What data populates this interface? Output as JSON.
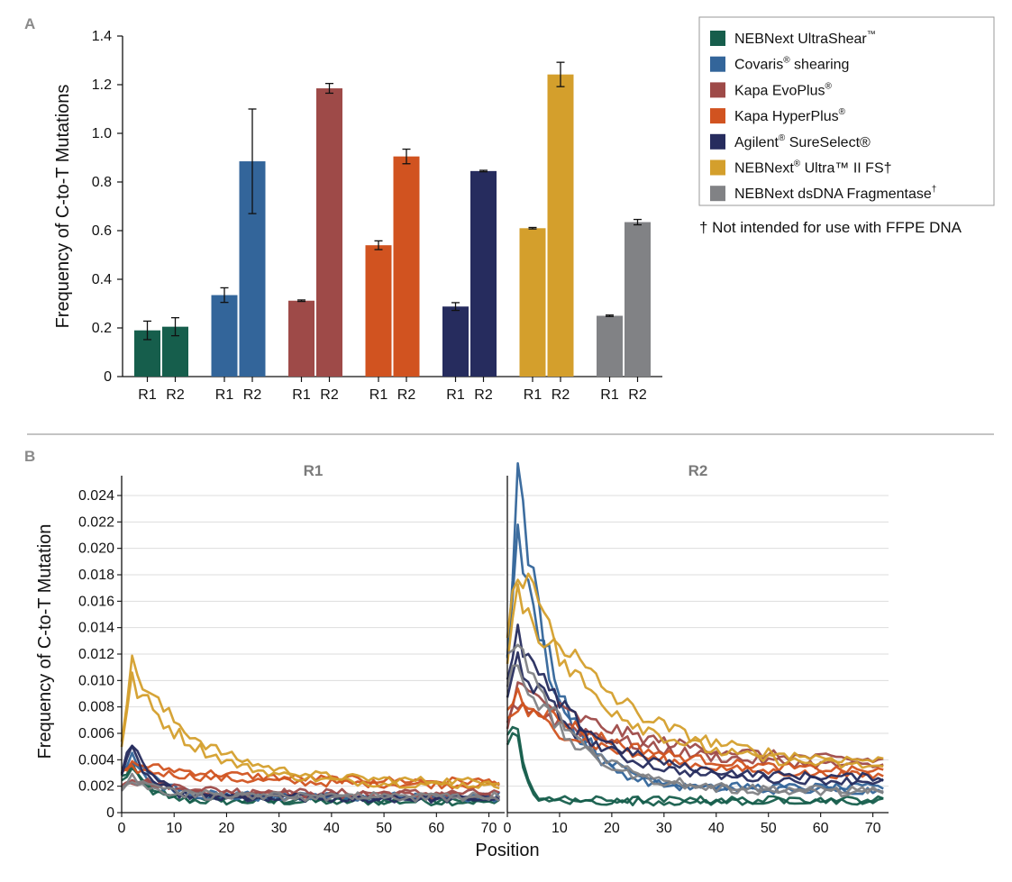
{
  "panel_labels": {
    "a": "A",
    "b": "B"
  },
  "colors": {
    "ultrashear": "#165e4c",
    "covaris": "#33659a",
    "evoplus": "#9e4a48",
    "hyperplus": "#d15320",
    "sureselect": "#262c5e",
    "ultra2fs": "#d49f2c",
    "fragmentase": "#818285"
  },
  "legend": {
    "entries": [
      {
        "text": "NEBNext UltraShear",
        "sup": "™",
        "tail": ""
      },
      {
        "text": "Covaris",
        "sup": "®",
        "tail": " shearing"
      },
      {
        "text": "Kapa EvoPlus",
        "sup": "®",
        "tail": ""
      },
      {
        "text": "Kapa HyperPlus",
        "sup": "®",
        "tail": ""
      },
      {
        "text": "Agilent",
        "sup": "®",
        "tail": " SureSelect®"
      },
      {
        "text": "NEBNext",
        "sup": "®",
        "tail": " Ultra™ II FS†"
      },
      {
        "text": "NEBNext dsDNA Fragmentase",
        "sup": "†",
        "tail": ""
      }
    ],
    "footnote": "† Not intended for use with FFPE DNA"
  },
  "chart_data": [
    {
      "type": "bar",
      "panel": "A",
      "title": "",
      "xlabel": "",
      "ylabel": "Frequency of C-to-T Mutations",
      "ylim": [
        0,
        1.4
      ],
      "yticks": [
        "0",
        "0.2",
        "0.4",
        "0.6",
        "0.8",
        "1.0",
        "1.2",
        "1.4"
      ],
      "categories": [
        "R1",
        "R2"
      ],
      "series": [
        {
          "name": "NEBNext UltraShear™",
          "values": [
            0.19,
            0.205
          ],
          "errors": [
            0.038,
            0.037
          ]
        },
        {
          "name": "Covaris® shearing",
          "values": [
            0.335,
            0.885
          ],
          "errors": [
            0.03,
            0.215
          ]
        },
        {
          "name": "Kapa EvoPlus®",
          "values": [
            0.312,
            1.185
          ],
          "errors": [
            0.003,
            0.02
          ]
        },
        {
          "name": "Kapa HyperPlus®",
          "values": [
            0.54,
            0.905
          ],
          "errors": [
            0.018,
            0.03
          ]
        },
        {
          "name": "Agilent® SureSelect®",
          "values": [
            0.288,
            0.845
          ],
          "errors": [
            0.016,
            0.003
          ]
        },
        {
          "name": "NEBNext® Ultra™ II FS†",
          "values": [
            0.61,
            1.242
          ],
          "errors": [
            0.003,
            0.05
          ]
        },
        {
          "name": "NEBNext dsDNA Fragmentase†",
          "values": [
            0.25,
            0.635
          ],
          "errors": [
            0.003,
            0.011
          ]
        }
      ]
    },
    {
      "type": "line",
      "panel": "B",
      "xlabel": "Position",
      "ylabel": "Frequency of C-to-T Mutation",
      "facets": [
        "R1",
        "R2"
      ],
      "xlim": [
        0,
        73
      ],
      "ylim": [
        0,
        0.0255
      ],
      "xticks": [
        "0",
        "10",
        "20",
        "30",
        "40",
        "50",
        "60",
        "70"
      ],
      "yticks": [
        "0",
        "0.002",
        "0.004",
        "0.006",
        "0.008",
        "0.010",
        "0.012",
        "0.014",
        "0.016",
        "0.018",
        "0.020",
        "0.022",
        "0.024"
      ],
      "series": [
        {
          "name": "NEBNext UltraShear™",
          "replicates": 2,
          "R1": {
            "start": 0.0025,
            "peak": 0.0035,
            "tail": 0.0009,
            "k": 0.3
          },
          "R2": {
            "start": 0.006,
            "peak": 0.006,
            "tail": 0.0009,
            "k": 0.7
          }
        },
        {
          "name": "Covaris® shearing",
          "replicates": 2,
          "R1": {
            "start": 0.003,
            "peak": 0.004,
            "tail": 0.0012,
            "k": 0.2
          },
          "R2": {
            "start": 0.012,
            "peak": 0.024,
            "tail": 0.0018,
            "k": 0.14
          }
        },
        {
          "name": "Kapa EvoPlus®",
          "replicates": 2,
          "R1": {
            "start": 0.002,
            "peak": 0.0025,
            "tail": 0.0014,
            "k": 0.1
          },
          "R2": {
            "start": 0.007,
            "peak": 0.009,
            "tail": 0.0035,
            "k": 0.045
          }
        },
        {
          "name": "Kapa HyperPlus®",
          "replicates": 2,
          "R1": {
            "start": 0.003,
            "peak": 0.0035,
            "tail": 0.0022,
            "k": 0.05
          },
          "R2": {
            "start": 0.0075,
            "peak": 0.0085,
            "tail": 0.0028,
            "k": 0.05
          }
        },
        {
          "name": "Agilent® SureSelect®",
          "replicates": 2,
          "R1": {
            "start": 0.003,
            "peak": 0.005,
            "tail": 0.0011,
            "k": 0.25
          },
          "R2": {
            "start": 0.009,
            "peak": 0.0125,
            "tail": 0.0025,
            "k": 0.08
          }
        },
        {
          "name": "NEBNext® Ultra™ II FS†",
          "replicates": 2,
          "R1": {
            "start": 0.0055,
            "peak": 0.0105,
            "tail": 0.0022,
            "k": 0.08
          },
          "R2": {
            "start": 0.012,
            "peak": 0.018,
            "tail": 0.0035,
            "k": 0.06
          }
        },
        {
          "name": "NEBNext dsDNA Fragmentase†",
          "replicates": 2,
          "R1": {
            "start": 0.002,
            "peak": 0.0025,
            "tail": 0.0012,
            "k": 0.15
          },
          "R2": {
            "start": 0.011,
            "peak": 0.012,
            "tail": 0.0016,
            "k": 0.09
          }
        }
      ]
    }
  ]
}
